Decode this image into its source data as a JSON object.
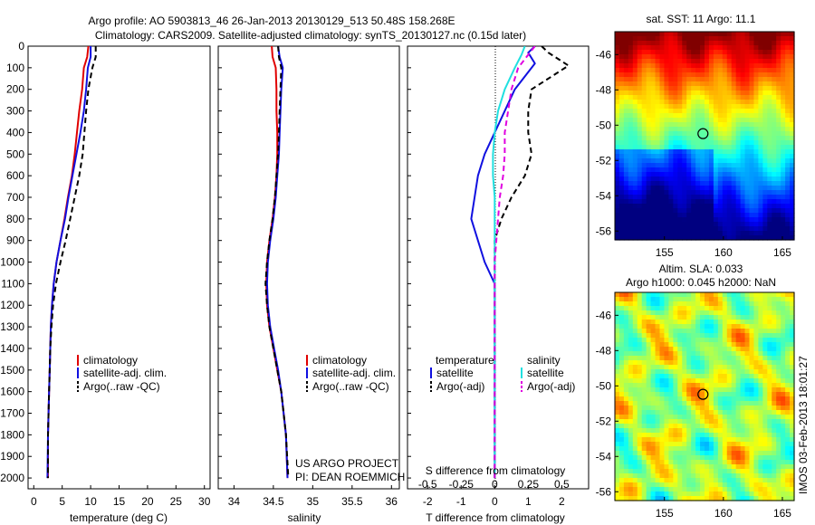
{
  "header": {
    "line1": "Argo profile: AO 5903813_46 26-Jan-2013 20130129_513 50.48S 158.268E",
    "line2": "Climatology: CARS2009. Satellite-adjusted climatology: synTS_20130127.nc (0.15d later)"
  },
  "colors": {
    "climatology": "#e00000",
    "satellite": "#1010e0",
    "argo": "#000000",
    "sal_satellite": "#20e0e0",
    "sal_argo": "#e000e0"
  },
  "credits": {
    "line1": "US ARGO PROJECT",
    "line2": "PI: DEAN ROEMMICH"
  },
  "side_text": "IMOS 03-Feb-2013 18:01:27",
  "chart_data": [
    {
      "id": "temperature",
      "type": "line",
      "xlabel": "temperature (deg C)",
      "ylabel": "",
      "xlim": [
        -1,
        31
      ],
      "ylim": [
        2050,
        0
      ],
      "x_ticks": [
        0,
        5,
        10,
        15,
        20,
        25,
        30
      ],
      "y_ticks": [
        0,
        100,
        200,
        300,
        400,
        500,
        600,
        700,
        800,
        900,
        1000,
        1100,
        1200,
        1300,
        1400,
        1500,
        1600,
        1700,
        1800,
        1900,
        2000
      ],
      "legend": [
        "climatology",
        "satellite-adj. clim.",
        "Argo(..raw -QC)"
      ],
      "legend_position": "bottom-right",
      "series": [
        {
          "name": "climatology",
          "style": "solid",
          "color": "#e00000",
          "x": [
            9.6,
            9.4,
            8.8,
            8.5,
            8.0,
            7.6,
            7.2,
            6.7,
            6.0,
            5.4,
            4.7,
            4.0,
            3.5,
            3.2,
            3.0,
            2.9,
            2.8,
            2.7,
            2.6,
            2.5,
            2.5
          ],
          "y": [
            0,
            50,
            100,
            200,
            300,
            400,
            500,
            600,
            700,
            800,
            900,
            1000,
            1100,
            1200,
            1300,
            1400,
            1500,
            1600,
            1700,
            1800,
            2000
          ]
        },
        {
          "name": "satellite-adj. clim.",
          "style": "solid",
          "color": "#1010e0",
          "x": [
            10.0,
            10.0,
            9.5,
            9.2,
            8.8,
            8.2,
            7.5,
            6.8,
            6.1,
            5.5,
            4.7,
            4.0,
            3.5,
            3.2,
            3.0,
            2.9,
            2.8,
            2.7,
            2.6,
            2.5,
            2.4
          ],
          "y": [
            0,
            50,
            100,
            200,
            300,
            400,
            500,
            600,
            700,
            800,
            900,
            1000,
            1100,
            1200,
            1300,
            1400,
            1500,
            1600,
            1700,
            1800,
            2000
          ]
        },
        {
          "name": "Argo(..raw -QC)",
          "style": "dashed",
          "color": "#000000",
          "x": [
            10.9,
            10.9,
            10.3,
            9.6,
            9.2,
            8.9,
            8.6,
            8.0,
            7.2,
            6.4,
            5.6,
            4.7,
            3.9,
            3.4,
            3.1,
            2.9,
            2.8,
            2.7,
            2.6,
            2.5,
            2.5
          ],
          "y": [
            0,
            50,
            100,
            200,
            300,
            400,
            500,
            600,
            700,
            800,
            900,
            1000,
            1100,
            1200,
            1300,
            1400,
            1500,
            1600,
            1700,
            1800,
            2000
          ]
        }
      ]
    },
    {
      "id": "salinity",
      "type": "line",
      "xlabel": "salinity",
      "ylabel": "",
      "xlim": [
        33.8,
        36.1
      ],
      "ylim": [
        2050,
        0
      ],
      "x_ticks": [
        34,
        34.5,
        35,
        35.5,
        36
      ],
      "legend": [
        "climatology",
        "satellite-adj. clim.",
        "Argo(..raw -QC)"
      ],
      "legend_position": "bottom-right",
      "series": [
        {
          "name": "climatology",
          "style": "solid",
          "color": "#e00000",
          "x": [
            34.48,
            34.49,
            34.53,
            34.54,
            34.54,
            34.55,
            34.55,
            34.54,
            34.52,
            34.49,
            34.45,
            34.42,
            34.41,
            34.42,
            34.45,
            34.5,
            34.55,
            34.6,
            34.63,
            34.66,
            34.68
          ],
          "y": [
            0,
            50,
            100,
            200,
            300,
            400,
            500,
            600,
            700,
            800,
            900,
            1000,
            1100,
            1200,
            1300,
            1400,
            1500,
            1600,
            1700,
            1800,
            2000
          ]
        },
        {
          "name": "satellite-adj. clim.",
          "style": "solid",
          "color": "#1010e0",
          "x": [
            34.56,
            34.58,
            34.62,
            34.6,
            34.59,
            34.58,
            34.57,
            34.55,
            34.53,
            34.5,
            34.46,
            34.43,
            34.42,
            34.43,
            34.46,
            34.51,
            34.56,
            34.6,
            34.63,
            34.66,
            34.68
          ],
          "y": [
            0,
            50,
            100,
            200,
            300,
            400,
            500,
            600,
            700,
            800,
            900,
            1000,
            1100,
            1200,
            1300,
            1400,
            1500,
            1600,
            1700,
            1800,
            2000
          ]
        },
        {
          "name": "Argo(..raw -QC)",
          "style": "dashed",
          "color": "#000000",
          "x": [
            34.56,
            34.57,
            34.6,
            34.59,
            34.58,
            34.57,
            34.56,
            34.54,
            34.52,
            34.49,
            34.45,
            34.42,
            34.4,
            34.42,
            34.45,
            34.5,
            34.55,
            34.6,
            34.63,
            34.66,
            34.69
          ],
          "y": [
            0,
            50,
            100,
            200,
            300,
            400,
            500,
            600,
            700,
            800,
            900,
            1000,
            1100,
            1200,
            1300,
            1400,
            1500,
            1600,
            1700,
            1800,
            2000
          ]
        }
      ]
    },
    {
      "id": "differences",
      "type": "line",
      "xlabel": "T difference from climatology",
      "x2label": "S difference from climatology",
      "xlim": [
        -2.6,
        2.8
      ],
      "ylim": [
        2050,
        0
      ],
      "x_ticks": [
        -2,
        -1,
        0,
        1,
        2
      ],
      "x2_ticks": [
        -0.5,
        -0.25,
        0,
        0.25,
        0.5
      ],
      "legend_groups": [
        {
          "title": "temperature",
          "entries": [
            "satellite",
            "Argo(-adj)"
          ]
        },
        {
          "title": "salinity",
          "entries": [
            "satellite",
            "Argo(-adj)"
          ]
        }
      ],
      "series": [
        {
          "name": "satellite",
          "group": "temperature",
          "style": "solid",
          "color": "#1010e0",
          "x": [
            1.2,
            1.0,
            1.2,
            0.6,
            0.3,
            0.0,
            -0.3,
            -0.5,
            -0.6,
            -0.7,
            -0.5,
            -0.3,
            0.0,
            0.0,
            0.0,
            0.0,
            0.0,
            0.0,
            0.0,
            0.0,
            0.0
          ],
          "y": [
            0,
            30,
            80,
            200,
            300,
            400,
            500,
            600,
            700,
            800,
            900,
            1000,
            1100,
            1200,
            1300,
            1400,
            1500,
            1600,
            1700,
            1800,
            2000
          ]
        },
        {
          "name": "Argo(-adj)",
          "group": "temperature",
          "style": "dashed",
          "color": "#000000",
          "x": [
            1.4,
            1.6,
            2.2,
            1.1,
            1.0,
            1.0,
            1.1,
            0.9,
            0.5,
            0.2,
            0.0,
            0.0,
            0.0,
            0.0,
            0.0,
            0.0,
            0.0,
            0.0,
            0.0,
            0.0,
            0.0
          ],
          "y": [
            0,
            30,
            90,
            200,
            300,
            400,
            500,
            600,
            700,
            800,
            900,
            1000,
            1100,
            1200,
            1300,
            1400,
            1500,
            1600,
            1700,
            1800,
            2000
          ]
        },
        {
          "name": "satellite",
          "group": "salinity",
          "style": "solid",
          "color": "#20e0e0",
          "x": [
            0.9,
            0.8,
            0.6,
            0.3,
            0.1,
            0.0,
            -0.05,
            -0.05,
            0.0,
            0.0,
            0.0,
            0.0,
            0.0,
            0.0,
            0.0,
            0.0,
            0.0,
            0.0,
            0.0,
            0.0,
            0.0
          ],
          "y": [
            0,
            40,
            100,
            200,
            300,
            400,
            500,
            600,
            700,
            800,
            900,
            1000,
            1100,
            1200,
            1300,
            1400,
            1500,
            1600,
            1700,
            1800,
            2000
          ]
        },
        {
          "name": "Argo(-adj)",
          "group": "salinity",
          "style": "dashed",
          "color": "#e000e0",
          "x": [
            1.2,
            1.0,
            0.7,
            0.5,
            0.4,
            0.3,
            0.3,
            0.25,
            0.15,
            0.1,
            0.05,
            0.0,
            0.0,
            0.0,
            0.0,
            0.0,
            0.0,
            0.0,
            0.0,
            0.0,
            0.0
          ],
          "y": [
            0,
            40,
            100,
            200,
            300,
            400,
            500,
            600,
            700,
            800,
            900,
            1000,
            1100,
            1200,
            1300,
            1400,
            1500,
            1600,
            1700,
            1800,
            2000
          ]
        }
      ]
    },
    {
      "id": "sst_map",
      "type": "heatmap",
      "title": "sat. SST: 11  Argo: 11.1",
      "x_ticks": [
        155,
        160,
        165
      ],
      "y_ticks": [
        -46,
        -48,
        -50,
        -52,
        -54,
        -56
      ],
      "xlim": [
        150.8,
        166
      ],
      "ylim": [
        -56.5,
        -44.7
      ],
      "marker": {
        "lon": 158.268,
        "lat": -50.48
      }
    },
    {
      "id": "sla_map",
      "type": "heatmap",
      "title_line1": "Altim. SLA: 0.033",
      "title_line2": "Argo h1000: 0.045 h2000: NaN",
      "x_ticks": [
        155,
        160,
        165
      ],
      "y_ticks": [
        -46,
        -48,
        -50,
        -52,
        -54,
        -56
      ],
      "xlim": [
        150.8,
        166
      ],
      "ylim": [
        -56.5,
        -44.7
      ],
      "marker": {
        "lon": 158.268,
        "lat": -50.48
      }
    }
  ]
}
